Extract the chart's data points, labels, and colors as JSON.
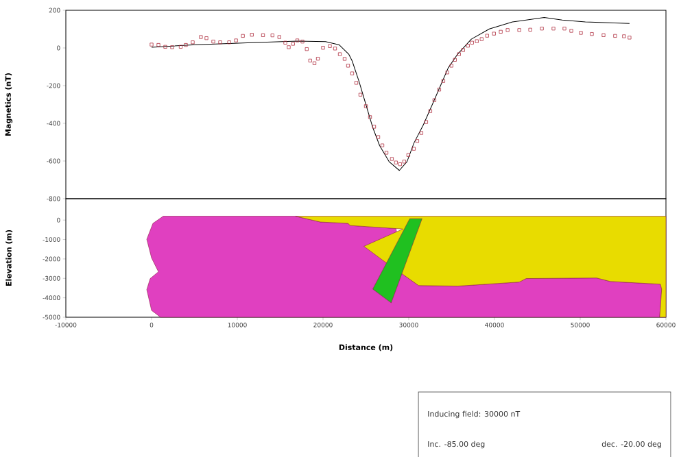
{
  "chart_data": [
    {
      "type": "scatter",
      "ylabel": "Magnetics (nT)",
      "xlim": [
        -10000,
        60000
      ],
      "ylim": [
        -800,
        200
      ],
      "yticks": [
        -800,
        -600,
        -400,
        -200,
        0,
        200
      ],
      "tick_labels": "y",
      "series": [
        {
          "marker": "square",
          "color": "#b03040",
          "x": [
            0,
            800,
            1600,
            2400,
            3400,
            4000,
            4800,
            5750,
            6400,
            7200,
            8000,
            9050,
            9850,
            10650,
            11700,
            13000,
            14100,
            14900,
            15600,
            16000,
            16500,
            17000,
            17600,
            18100,
            18500,
            19000,
            19400,
            20000,
            20800,
            21400,
            21960,
            22520,
            22920,
            23400,
            23880,
            24360,
            25000,
            25480,
            25960,
            26440,
            26920,
            27400,
            28030,
            28510,
            28990,
            29470,
            29950,
            30590,
            30990,
            31470,
            32030,
            32510,
            32990,
            33550,
            34030,
            34500,
            34980,
            35380,
            35860,
            36340,
            36900,
            37380,
            37940,
            38500,
            39140,
            39940,
            40730,
            41530,
            42890,
            44170,
            45530,
            46880,
            48160,
            48960,
            50080,
            51360,
            52720,
            54070,
            55110,
            55750
          ],
          "values": [
            18,
            16,
            6,
            4,
            6,
            16,
            30,
            58,
            52,
            34,
            30,
            30,
            40,
            64,
            70,
            68,
            67,
            58,
            28,
            4,
            22,
            40,
            34,
            -6,
            -67,
            -81,
            -57,
            1,
            10,
            -3,
            -33,
            -58,
            -94,
            -135,
            -185,
            -248,
            -309,
            -367,
            -418,
            -473,
            -517,
            -556,
            -589,
            -608,
            -617,
            -603,
            -568,
            -535,
            -494,
            -451,
            -393,
            -335,
            -277,
            -221,
            -175,
            -130,
            -94,
            -63,
            -33,
            -11,
            12,
            28,
            36,
            47,
            65,
            76,
            86,
            95,
            95,
            97,
            103,
            103,
            103,
            91,
            80,
            74,
            68,
            64,
            62,
            55
          ]
        },
        {
          "type": "line",
          "color": "#000000",
          "x": [
            0,
            4800,
            11700,
            17000,
            20300,
            21900,
            23000,
            23400,
            24200,
            25000,
            25800,
            26600,
            27700,
            28900,
            29800,
            30600,
            31700,
            32750,
            33800,
            34600,
            35700,
            37300,
            39400,
            42100,
            45800,
            47900,
            50600,
            55750
          ],
          "values": [
            4,
            16,
            28,
            36,
            34,
            16,
            -33,
            -69,
            -178,
            -300,
            -422,
            -518,
            -603,
            -650,
            -603,
            -505,
            -408,
            -300,
            -190,
            -106,
            -33,
            47,
            101,
            138,
            162,
            148,
            138,
            130
          ]
        }
      ]
    },
    {
      "type": "area",
      "xlabel": "Distance (m)",
      "ylabel": "Elevation (m)",
      "xlim": [
        -10000,
        60000
      ],
      "ylim": [
        -5000,
        1100
      ],
      "xticks": [
        -10000,
        0,
        10000,
        20000,
        30000,
        40000,
        50000,
        60000
      ],
      "yticks": [
        -5000,
        -4000,
        -3000,
        -2000,
        -1000,
        0
      ],
      "annotations": [
        "Inducing field: 30000 nT",
        "Inc. -85.00 deg",
        "dec. -20.00 deg"
      ],
      "series": [
        {
          "color": "#e040c0",
          "x": [
            1360,
            16770,
            19700,
            22920,
            23160,
            28500,
            29550,
            31150,
            35700,
            42890,
            43690,
            51920,
            53510,
            59350,
            59500,
            59270,
            1040,
            0,
            -560,
            -160,
            800,
            0,
            -560,
            160
          ],
          "values": [
            200,
            200,
            -100,
            -170,
            -280,
            -430,
            -2870,
            -3370,
            -3400,
            -3190,
            -3010,
            -2980,
            -3160,
            -3300,
            -3550,
            -5000,
            -5000,
            -4650,
            -3580,
            -3010,
            -2660,
            -1950,
            -990,
            -170
          ]
        },
        {
          "color": "#e8dc00",
          "x": [
            16770,
            60000,
            60000,
            59270,
            59500,
            59350,
            53510,
            51920,
            43690,
            42890,
            35700,
            31150,
            29550,
            27150,
            24760,
            29310,
            23160,
            22920,
            19700
          ],
          "values": [
            200,
            200,
            -5000,
            -5000,
            -3550,
            -3300,
            -3160,
            -2980,
            -3010,
            -3190,
            -3400,
            -3370,
            -2870,
            -2130,
            -1350,
            -460,
            -280,
            -170,
            -100
          ]
        },
        {
          "color": "#20c020",
          "x": [
            30110,
            31550,
            27950,
            25800
          ],
          "values": [
            70,
            70,
            -4260,
            -3550
          ]
        }
      ]
    }
  ]
}
